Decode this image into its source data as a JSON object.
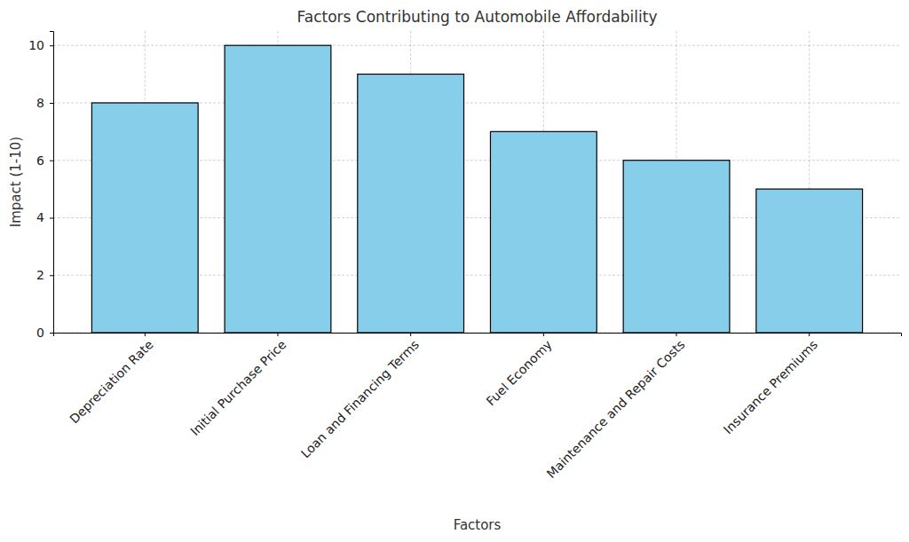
{
  "chart_data": {
    "type": "bar",
    "title": "Factors Contributing to Automobile Affordability",
    "x_label": "Factors",
    "y_label": "Impact (1-10)",
    "categories": [
      "Depreciation Rate",
      "Initial Purchase Price",
      "Loan and Financing Terms",
      "Fuel Economy",
      "Maintenance and Repair Costs",
      "Insurance Premiums"
    ],
    "values": [
      8,
      10,
      9,
      7,
      6,
      5
    ],
    "color": "#87ceeb",
    "ylim": [
      0,
      10.5
    ],
    "yticks": [
      0,
      2,
      4,
      6,
      8,
      10
    ],
    "grid": true
  }
}
